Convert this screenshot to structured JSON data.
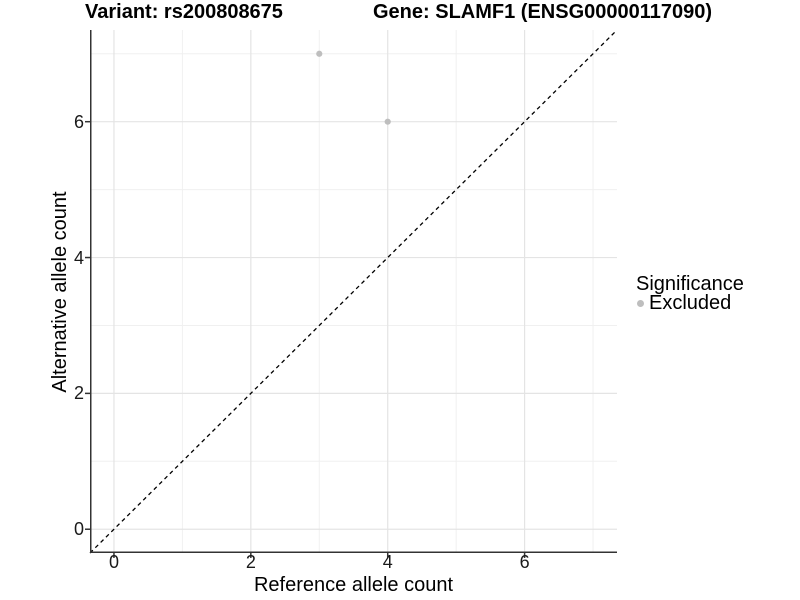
{
  "titles": {
    "variant": "Variant: rs200808675",
    "gene": "Gene: SLAMF1 (ENSG00000117090)"
  },
  "axes": {
    "x_label": "Reference allele count",
    "y_label": "Alternative allele count"
  },
  "legend": {
    "title": "Significance",
    "items": [
      {
        "label": "Excluded",
        "color": "#bebebe",
        "marker": "circle"
      }
    ]
  },
  "chart_data": {
    "type": "scatter",
    "title": "Variant: rs200808675   Gene: SLAMF1 (ENSG00000117090)",
    "xlabel": "Reference allele count",
    "ylabel": "Alternative allele count",
    "xlim": [
      -0.35,
      7.35
    ],
    "ylim": [
      -0.35,
      7.35
    ],
    "x_ticks": [
      0,
      2,
      4,
      6
    ],
    "y_ticks": [
      0,
      2,
      4,
      6
    ],
    "x_minor_ticks": [
      1,
      3,
      5,
      7
    ],
    "y_minor_ticks": [
      1,
      3,
      5,
      7
    ],
    "grid": "major+minor",
    "legend_position": "right",
    "series": [
      {
        "name": "Excluded",
        "color": "#bebebe",
        "marker": "circle",
        "points": [
          {
            "x": 3,
            "y": 7
          },
          {
            "x": 4,
            "y": 6
          }
        ]
      }
    ],
    "reference_line": {
      "slope": 1,
      "intercept": 0,
      "linetype": "dashed",
      "color": "#000000"
    }
  },
  "colors": {
    "background": "#ffffff",
    "grid_major": "#e4e4e4",
    "grid_minor": "#f0f0f0",
    "axis_line": "#333333",
    "tick_mark": "#333333",
    "point": "#bebebe",
    "text": "#000000"
  }
}
